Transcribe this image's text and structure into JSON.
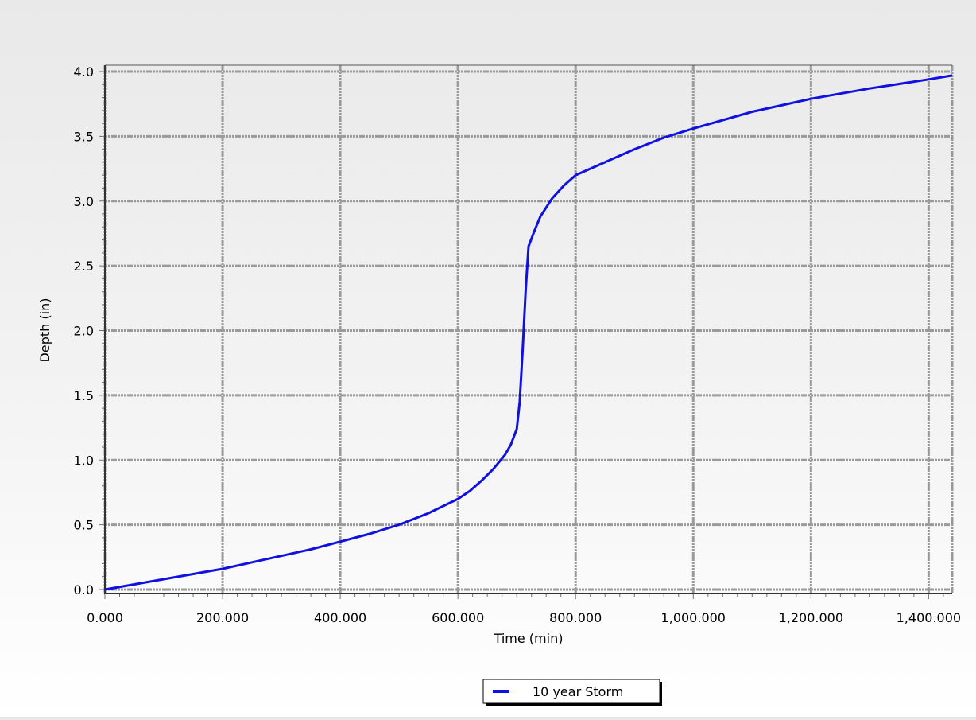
{
  "chart_data": {
    "type": "line",
    "title": "",
    "xlabel": "Time (min)",
    "ylabel": "Depth (in)",
    "xlim": [
      0,
      1440
    ],
    "ylim": [
      0,
      4.0
    ],
    "x_ticks": [
      0,
      200,
      400,
      600,
      800,
      1000,
      1200,
      1400
    ],
    "x_tick_labels": [
      "0.000",
      "200.000",
      "400.000",
      "600.000",
      "800.000",
      "1,000.000",
      "1,200.000",
      "1,400.000"
    ],
    "y_ticks": [
      0,
      0.5,
      1.0,
      1.5,
      2.0,
      2.5,
      3.0,
      3.5,
      4.0
    ],
    "y_tick_labels": [
      "0.0",
      "0.5",
      "1.0",
      "1.5",
      "2.0",
      "2.5",
      "3.0",
      "3.5",
      "4.0"
    ],
    "grid": true,
    "legend_position": "bottom-center",
    "series": [
      {
        "name": "10 year Storm",
        "color": "#1010e0",
        "x": [
          0,
          50,
          100,
          150,
          200,
          250,
          300,
          350,
          400,
          450,
          500,
          550,
          600,
          620,
          640,
          660,
          680,
          690,
          700,
          705,
          710,
          715,
          720,
          730,
          740,
          760,
          780,
          800,
          850,
          900,
          950,
          1000,
          1100,
          1200,
          1300,
          1400,
          1440
        ],
        "y": [
          0.0,
          0.04,
          0.08,
          0.12,
          0.16,
          0.21,
          0.26,
          0.31,
          0.37,
          0.43,
          0.5,
          0.59,
          0.7,
          0.76,
          0.84,
          0.93,
          1.04,
          1.12,
          1.24,
          1.45,
          1.85,
          2.3,
          2.65,
          2.77,
          2.88,
          3.02,
          3.12,
          3.2,
          3.3,
          3.4,
          3.49,
          3.56,
          3.69,
          3.79,
          3.87,
          3.94,
          3.97
        ]
      }
    ]
  }
}
